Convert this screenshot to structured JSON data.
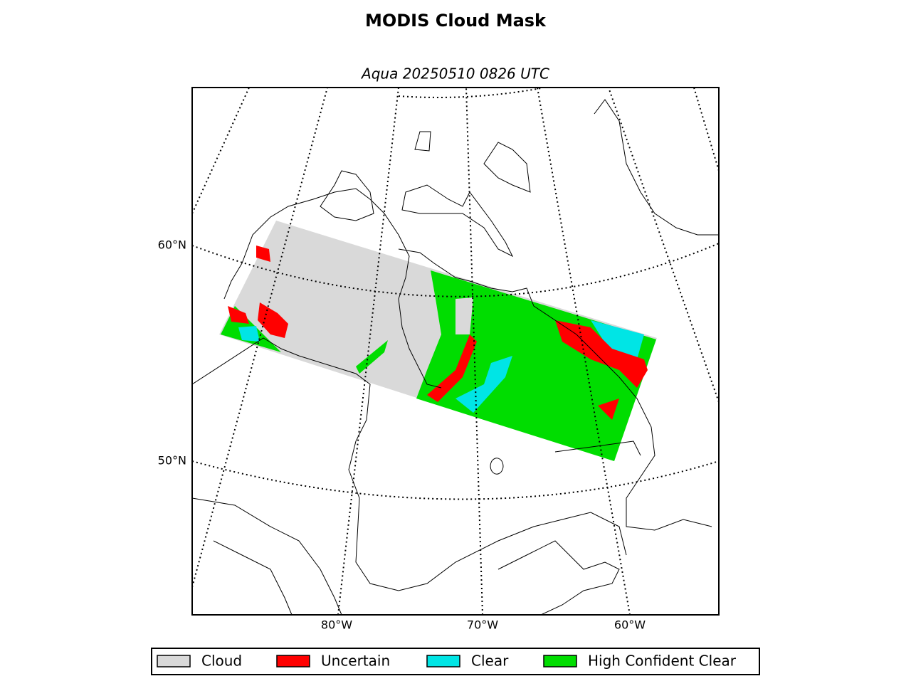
{
  "title": "MODIS Cloud Mask",
  "subtitle": "Aqua 20250510 0826 UTC",
  "lat_labels": [
    "60°N",
    "50°N"
  ],
  "lon_labels": [
    "80°W",
    "70°W",
    "60°W"
  ],
  "legend": [
    {
      "label": "Cloud",
      "color": "#d9d9d9"
    },
    {
      "label": "Uncertain",
      "color": "#ff0000"
    },
    {
      "label": "Clear",
      "color": "#00e5e5"
    },
    {
      "label": "High Confident Clear",
      "color": "#00dd00"
    }
  ]
}
